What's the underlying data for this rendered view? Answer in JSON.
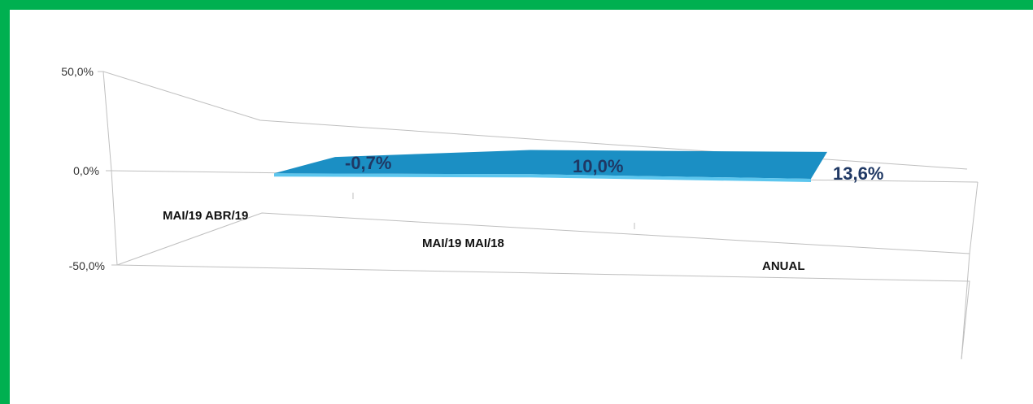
{
  "chart_data": {
    "type": "area",
    "title": "",
    "xlabel": "",
    "ylabel": "",
    "ylim": [
      -50,
      50
    ],
    "yticks": [
      "50,0%",
      "0,0%",
      "-50,0%"
    ],
    "categories": [
      "MAI/19 ABR/19",
      "MAI/19 MAI/18",
      "ANUAL"
    ],
    "values": [
      -0.7,
      10.0,
      13.6
    ],
    "data_labels": [
      "-0,7%",
      "10,0%",
      "13,6%"
    ],
    "grid": true,
    "legend": "none",
    "colors": {
      "series": "#1b8fc4",
      "series_edge": "#5cc6ee",
      "label": "#1f3864",
      "border": "#00b050"
    }
  }
}
